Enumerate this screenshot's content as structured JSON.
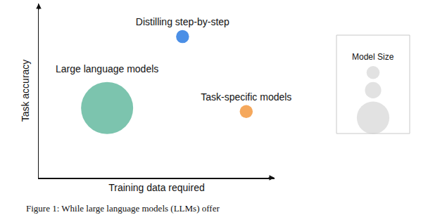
{
  "chart_data": {
    "type": "scatter",
    "x_label": "Training data required",
    "y_label": "Task accuracy",
    "labels": [
      "Large language models",
      "Distilling step-by-step",
      "Task-specific models"
    ],
    "x": [
      2.9,
      6.1,
      8.8
    ],
    "values": [
      4.0,
      8.1,
      3.8
    ],
    "size": [
      16,
      4,
      4
    ],
    "colors": [
      "#7cc4ae",
      "#4b8fe6",
      "#f5a85c"
    ],
    "xlim": [
      0,
      10
    ],
    "ylim": [
      0,
      10
    ],
    "xticks": [],
    "yticks": [],
    "tick_labels": false,
    "grid": false,
    "size_legend": {
      "title": "Model Size",
      "sizes": [
        4,
        5,
        10
      ],
      "color": "#d6d6d6"
    },
    "caption": "Figure 1: While large language models (LLMs) offer"
  }
}
